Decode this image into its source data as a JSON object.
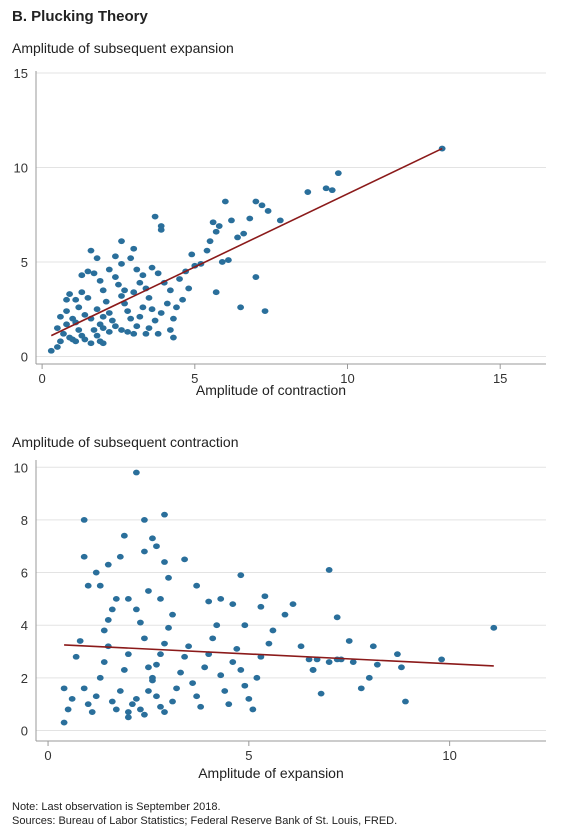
{
  "panel_title": "B. Plucking Theory",
  "notes": {
    "note": "Note: Last observation is September 2018.",
    "sources": "Sources: Bureau of Labor Statistics; Federal Reserve Bank of St. Louis, FRED."
  },
  "colors": {
    "point": "#2a6f9b",
    "fit_line": "#8b1a1a",
    "grid": "#e3e3e3",
    "axis": "#999999"
  },
  "chart_data": [
    {
      "type": "scatter",
      "title": "Amplitude of subsequent expansion",
      "xlabel": "Amplitude of contraction",
      "ylabel": "",
      "xlim": [
        -0.2,
        16.5
      ],
      "ylim": [
        -0.4,
        15
      ],
      "xticks": [
        0,
        5,
        10,
        15
      ],
      "yticks": [
        0,
        5,
        10,
        15
      ],
      "grid": true,
      "fit_line": [
        [
          0.3,
          1.1
        ],
        [
          13.1,
          11.0
        ]
      ],
      "points": [
        [
          0.3,
          0.3
        ],
        [
          0.5,
          0.5
        ],
        [
          0.6,
          0.8
        ],
        [
          0.5,
          1.5
        ],
        [
          0.7,
          1.2
        ],
        [
          0.8,
          1.7
        ],
        [
          0.9,
          1.0
        ],
        [
          1.0,
          0.9
        ],
        [
          1.1,
          0.8
        ],
        [
          0.6,
          2.1
        ],
        [
          0.8,
          2.4
        ],
        [
          1.0,
          2.0
        ],
        [
          1.1,
          1.8
        ],
        [
          1.2,
          2.6
        ],
        [
          0.9,
          3.3
        ],
        [
          1.1,
          3.0
        ],
        [
          1.3,
          3.4
        ],
        [
          1.5,
          3.1
        ],
        [
          1.4,
          2.2
        ],
        [
          1.2,
          1.4
        ],
        [
          1.3,
          1.1
        ],
        [
          1.4,
          0.9
        ],
        [
          1.6,
          0.7
        ],
        [
          1.7,
          1.4
        ],
        [
          1.8,
          1.1
        ],
        [
          1.9,
          0.8
        ],
        [
          2.0,
          0.7
        ],
        [
          1.6,
          2.0
        ],
        [
          1.8,
          2.5
        ],
        [
          1.5,
          4.5
        ],
        [
          1.7,
          4.4
        ],
        [
          1.9,
          4.0
        ],
        [
          2.0,
          3.5
        ],
        [
          2.1,
          2.9
        ],
        [
          2.2,
          2.3
        ],
        [
          2.3,
          1.9
        ],
        [
          2.4,
          1.6
        ],
        [
          2.2,
          1.3
        ],
        [
          2.0,
          1.5
        ],
        [
          1.6,
          5.6
        ],
        [
          1.8,
          5.2
        ],
        [
          2.2,
          4.6
        ],
        [
          2.4,
          4.2
        ],
        [
          2.5,
          3.8
        ],
        [
          2.6,
          3.2
        ],
        [
          2.7,
          2.8
        ],
        [
          2.8,
          2.4
        ],
        [
          2.9,
          2.0
        ],
        [
          2.6,
          1.4
        ],
        [
          2.8,
          1.3
        ],
        [
          3.0,
          1.2
        ],
        [
          3.1,
          1.6
        ],
        [
          3.2,
          2.1
        ],
        [
          3.3,
          2.6
        ],
        [
          3.0,
          3.4
        ],
        [
          3.2,
          3.9
        ],
        [
          3.4,
          3.6
        ],
        [
          3.5,
          3.1
        ],
        [
          3.6,
          2.5
        ],
        [
          2.4,
          5.3
        ],
        [
          2.6,
          4.9
        ],
        [
          2.9,
          5.2
        ],
        [
          3.1,
          4.6
        ],
        [
          3.3,
          4.3
        ],
        [
          2.6,
          6.1
        ],
        [
          3.0,
          5.7
        ],
        [
          3.6,
          4.7
        ],
        [
          3.8,
          4.4
        ],
        [
          4.0,
          3.9
        ],
        [
          4.2,
          3.5
        ],
        [
          4.1,
          2.8
        ],
        [
          3.9,
          2.3
        ],
        [
          3.7,
          1.9
        ],
        [
          3.5,
          1.5
        ],
        [
          3.4,
          1.2
        ],
        [
          3.8,
          1.2
        ],
        [
          4.2,
          1.4
        ],
        [
          4.3,
          2.0
        ],
        [
          4.4,
          2.6
        ],
        [
          4.6,
          3.0
        ],
        [
          4.8,
          3.6
        ],
        [
          4.5,
          4.1
        ],
        [
          4.7,
          4.5
        ],
        [
          5.0,
          4.8
        ],
        [
          4.9,
          5.4
        ],
        [
          5.2,
          4.9
        ],
        [
          5.4,
          5.6
        ],
        [
          5.5,
          6.1
        ],
        [
          5.7,
          6.6
        ],
        [
          5.6,
          7.1
        ],
        [
          5.8,
          6.9
        ],
        [
          6.0,
          8.2
        ],
        [
          6.2,
          7.2
        ],
        [
          6.4,
          6.3
        ],
        [
          6.6,
          6.5
        ],
        [
          6.8,
          7.3
        ],
        [
          7.0,
          8.2
        ],
        [
          7.2,
          8.0
        ],
        [
          7.4,
          7.7
        ],
        [
          7.8,
          7.2
        ],
        [
          5.9,
          5.0
        ],
        [
          6.1,
          5.1
        ],
        [
          6.5,
          2.6
        ],
        [
          7.0,
          4.2
        ],
        [
          7.3,
          2.4
        ],
        [
          5.7,
          3.4
        ],
        [
          4.3,
          1.0
        ],
        [
          3.7,
          7.4
        ],
        [
          3.9,
          6.9
        ],
        [
          3.9,
          6.7
        ],
        [
          2.7,
          3.5
        ],
        [
          1.9,
          1.7
        ],
        [
          0.8,
          3.0
        ],
        [
          1.3,
          4.3
        ],
        [
          8.7,
          8.7
        ],
        [
          9.3,
          8.9
        ],
        [
          9.5,
          8.8
        ],
        [
          9.7,
          9.7
        ],
        [
          13.1,
          11.0
        ],
        [
          2.0,
          2.1
        ]
      ]
    },
    {
      "type": "scatter",
      "title": "Amplitude of subsequent contraction",
      "xlabel": "Amplitude of expansion",
      "ylabel": "",
      "xlim": [
        -0.3,
        12.4
      ],
      "ylim": [
        -0.4,
        10.2
      ],
      "xticks": [
        0,
        5,
        10
      ],
      "yticks": [
        0,
        2,
        4,
        6,
        8,
        10
      ],
      "grid": true,
      "fit_line": [
        [
          0.4,
          3.25
        ],
        [
          11.1,
          2.45
        ]
      ],
      "points": [
        [
          0.4,
          0.3
        ],
        [
          0.5,
          0.8
        ],
        [
          0.4,
          1.6
        ],
        [
          0.6,
          1.2
        ],
        [
          0.7,
          2.8
        ],
        [
          0.8,
          3.4
        ],
        [
          0.9,
          1.6
        ],
        [
          1.0,
          1.0
        ],
        [
          1.1,
          0.7
        ],
        [
          1.2,
          1.3
        ],
        [
          1.3,
          2.0
        ],
        [
          1.4,
          2.6
        ],
        [
          1.5,
          3.2
        ],
        [
          1.6,
          1.1
        ],
        [
          1.7,
          0.8
        ],
        [
          1.8,
          1.5
        ],
        [
          1.9,
          2.3
        ],
        [
          2.0,
          2.9
        ],
        [
          1.4,
          3.8
        ],
        [
          1.5,
          4.2
        ],
        [
          1.6,
          4.6
        ],
        [
          1.7,
          5.0
        ],
        [
          1.3,
          5.5
        ],
        [
          1.2,
          6.0
        ],
        [
          0.9,
          6.6
        ],
        [
          1.0,
          5.5
        ],
        [
          1.5,
          6.3
        ],
        [
          1.8,
          6.6
        ],
        [
          2.0,
          5.0
        ],
        [
          2.2,
          4.6
        ],
        [
          2.3,
          4.1
        ],
        [
          2.4,
          3.5
        ],
        [
          2.5,
          2.4
        ],
        [
          2.6,
          1.9
        ],
        [
          2.7,
          1.3
        ],
        [
          2.8,
          0.9
        ],
        [
          2.9,
          0.7
        ],
        [
          2.0,
          0.5
        ],
        [
          2.0,
          0.7
        ],
        [
          2.1,
          1.0
        ],
        [
          2.2,
          1.2
        ],
        [
          2.3,
          0.8
        ],
        [
          2.4,
          0.6
        ],
        [
          2.5,
          1.5
        ],
        [
          2.6,
          2.0
        ],
        [
          2.7,
          2.5
        ],
        [
          2.8,
          2.9
        ],
        [
          2.9,
          3.3
        ],
        [
          3.0,
          3.9
        ],
        [
          3.1,
          4.4
        ],
        [
          2.8,
          5.0
        ],
        [
          2.5,
          5.3
        ],
        [
          2.4,
          6.8
        ],
        [
          2.6,
          7.3
        ],
        [
          2.7,
          7.0
        ],
        [
          2.9,
          6.4
        ],
        [
          3.0,
          5.8
        ],
        [
          3.1,
          1.1
        ],
        [
          3.2,
          1.6
        ],
        [
          3.3,
          2.2
        ],
        [
          3.4,
          2.8
        ],
        [
          3.5,
          3.2
        ],
        [
          3.6,
          1.8
        ],
        [
          3.7,
          1.3
        ],
        [
          3.8,
          0.9
        ],
        [
          3.9,
          2.4
        ],
        [
          4.0,
          2.9
        ],
        [
          4.1,
          3.5
        ],
        [
          4.2,
          4.0
        ],
        [
          4.3,
          2.1
        ],
        [
          4.4,
          1.5
        ],
        [
          4.5,
          1.0
        ],
        [
          4.6,
          2.6
        ],
        [
          4.7,
          3.1
        ],
        [
          4.8,
          2.3
        ],
        [
          4.9,
          1.7
        ],
        [
          5.0,
          1.2
        ],
        [
          5.1,
          0.8
        ],
        [
          5.2,
          2.0
        ],
        [
          5.3,
          2.8
        ],
        [
          4.9,
          4.0
        ],
        [
          4.8,
          5.9
        ],
        [
          4.6,
          4.8
        ],
        [
          4.3,
          5.0
        ],
        [
          4.0,
          4.9
        ],
        [
          3.7,
          5.5
        ],
        [
          3.4,
          6.5
        ],
        [
          2.2,
          9.8
        ],
        [
          2.4,
          8.0
        ],
        [
          2.9,
          8.2
        ],
        [
          0.9,
          8.0
        ],
        [
          1.9,
          7.4
        ],
        [
          5.3,
          4.7
        ],
        [
          5.4,
          5.1
        ],
        [
          5.5,
          3.3
        ],
        [
          5.6,
          3.8
        ],
        [
          5.9,
          4.4
        ],
        [
          6.1,
          4.8
        ],
        [
          6.3,
          3.2
        ],
        [
          6.5,
          2.7
        ],
        [
          6.6,
          2.3
        ],
        [
          6.7,
          2.7
        ],
        [
          6.8,
          1.4
        ],
        [
          7.0,
          2.6
        ],
        [
          7.2,
          2.7
        ],
        [
          7.3,
          2.7
        ],
        [
          7.5,
          3.4
        ],
        [
          7.6,
          2.6
        ],
        [
          7.8,
          1.6
        ],
        [
          8.0,
          2.0
        ],
        [
          8.1,
          3.2
        ],
        [
          8.2,
          2.5
        ],
        [
          8.7,
          2.9
        ],
        [
          8.8,
          2.4
        ],
        [
          8.9,
          1.1
        ],
        [
          7.0,
          6.1
        ],
        [
          7.2,
          4.3
        ],
        [
          9.8,
          2.7
        ],
        [
          11.1,
          3.9
        ],
        [
          6.6,
          2.3
        ]
      ]
    }
  ]
}
